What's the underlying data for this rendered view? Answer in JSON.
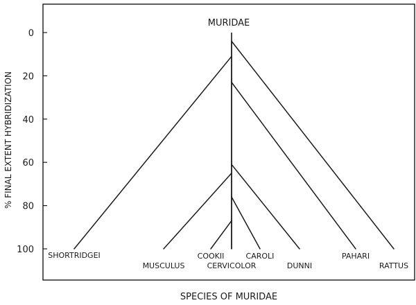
{
  "chart_data": {
    "type": "dendrogram",
    "title": "MURIDAE",
    "xlabel": "SPECIES OF MURIDAE",
    "ylabel": "% FINAL EXTENT HYBRIDIZATION",
    "ylim": [
      0,
      100
    ],
    "y_inverted": true,
    "yticks": [
      "0",
      "20",
      "40",
      "60",
      "80",
      "100"
    ],
    "leaves": [
      "SHORTRIDGEI",
      "MUSCULUS",
      "COOKII",
      "CERVICOLOR",
      "CAROLI",
      "DUNNI",
      "PAHARI",
      "RATTUS"
    ],
    "nodes": [
      {
        "name": "rattus-split",
        "y": 4,
        "children": [
          "shortridgei-split",
          "RATTUS"
        ]
      },
      {
        "name": "shortridgei-split",
        "y": 11,
        "children": [
          "SHORTRIDGEI",
          "pahari-split"
        ]
      },
      {
        "name": "pahari-split",
        "y": 23,
        "children": [
          "dunni-split",
          "PAHARI"
        ]
      },
      {
        "name": "dunni-split",
        "y": 61,
        "children": [
          "musculus-split",
          "DUNNI"
        ]
      },
      {
        "name": "musculus-split",
        "y": 65,
        "children": [
          "MUSCULUS",
          "caroli-split"
        ]
      },
      {
        "name": "caroli-split",
        "y": 76,
        "children": [
          "cookii-split",
          "CAROLI"
        ]
      },
      {
        "name": "cookii-split",
        "y": 87,
        "children": [
          "COOKII",
          "CERVICOLOR"
        ]
      }
    ]
  }
}
